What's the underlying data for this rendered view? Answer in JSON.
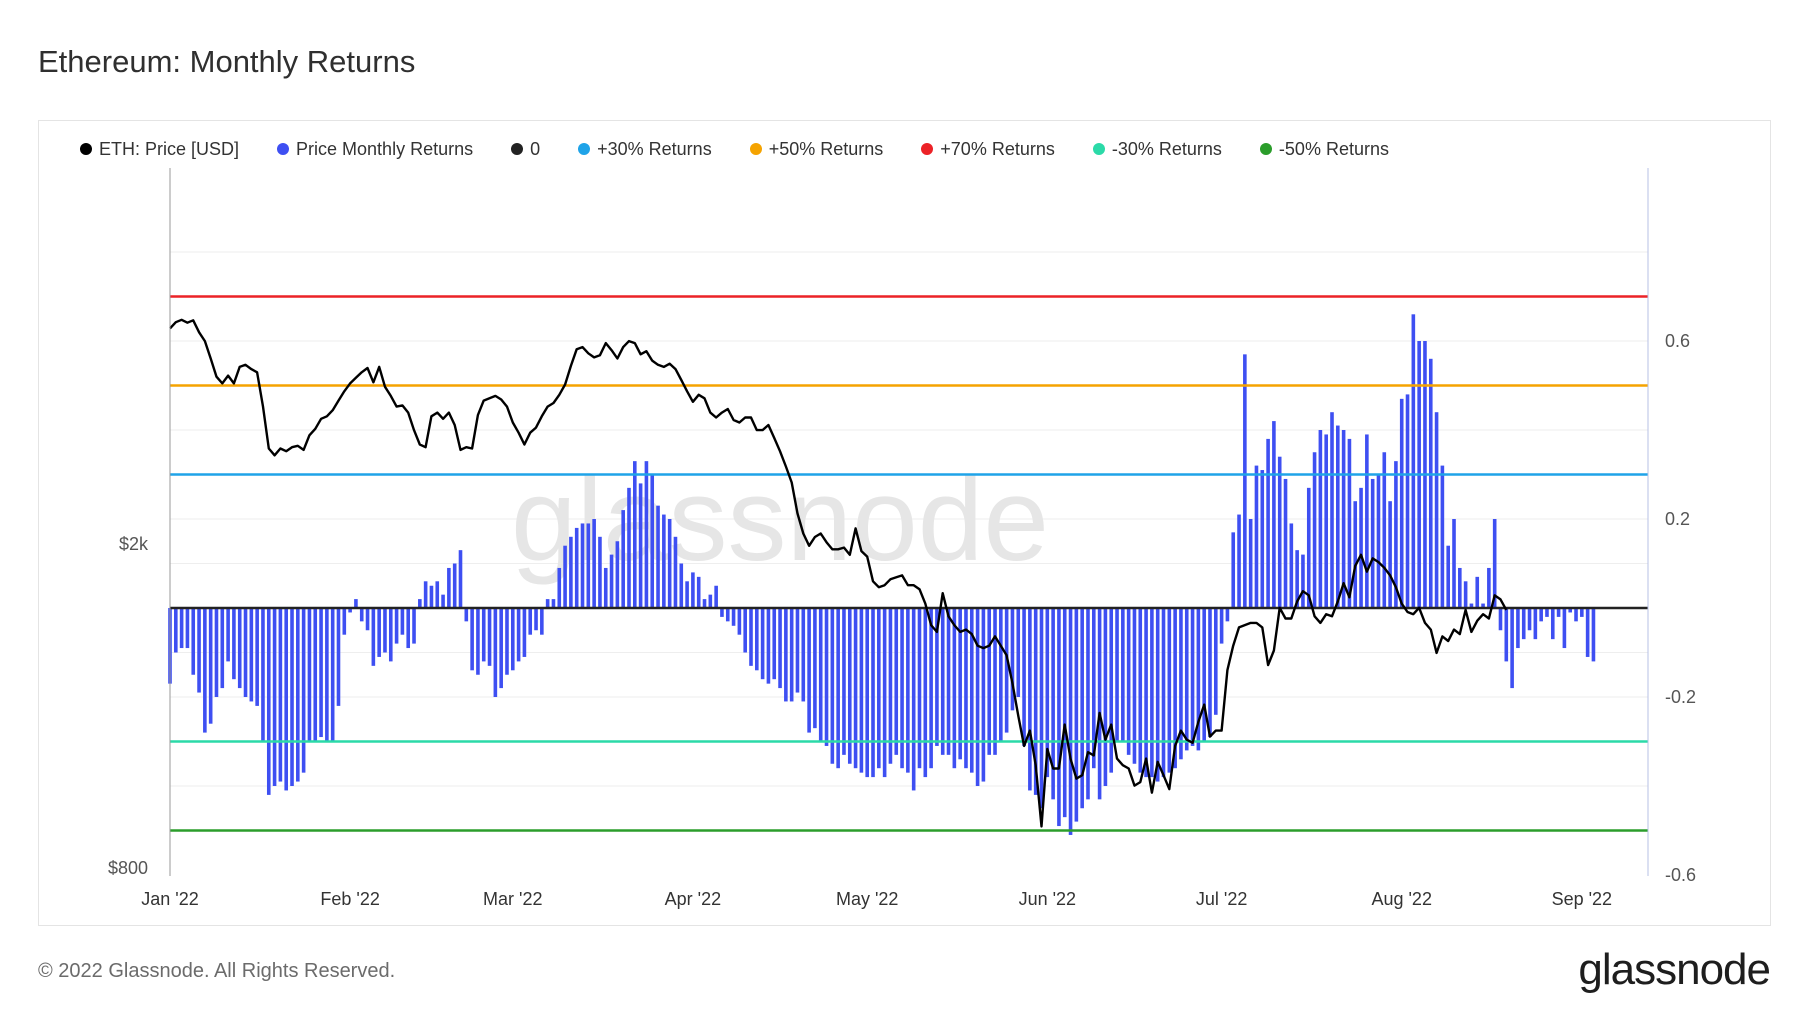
{
  "title": "Ethereum: Monthly Returns",
  "copyright": "© 2022 Glassnode. All Rights Reserved.",
  "logo": "glassnode",
  "watermark": "glassnode",
  "legend": [
    {
      "label": "ETH: Price [USD]",
      "color": "#000000"
    },
    {
      "label": "Price Monthly Returns",
      "color": "#3e4ff2"
    },
    {
      "label": "0",
      "color": "#222222"
    },
    {
      "label": "+30% Returns",
      "color": "#1fa3e8"
    },
    {
      "label": "+50% Returns",
      "color": "#f5a300"
    },
    {
      "label": "+70% Returns",
      "color": "#ec2227"
    },
    {
      "label": "-30% Returns",
      "color": "#2bdaa8"
    },
    {
      "label": "-50% Returns",
      "color": "#2b9d2b"
    }
  ],
  "chart_data": {
    "type": "bar",
    "x_ticks": [
      "Jan '22",
      "Feb '22",
      "Mar '22",
      "Apr '22",
      "May '22",
      "Jun '22",
      "Jul '22",
      "Aug '22",
      "Sep '22"
    ],
    "y_left_ticks": [
      "$2k",
      "$800"
    ],
    "y_right_ticks": [
      "0.6",
      "0.2",
      "-0.2",
      "-0.6"
    ],
    "y_right_range": [
      -0.6,
      0.8
    ],
    "y_left_scale": "log",
    "grid": true,
    "reference_lines": [
      {
        "name": "+70% Returns",
        "value": 0.7,
        "color": "#ec2227"
      },
      {
        "name": "+50% Returns",
        "value": 0.5,
        "color": "#f5a300"
      },
      {
        "name": "+30% Returns",
        "value": 0.3,
        "color": "#1fa3e8"
      },
      {
        "name": "0",
        "value": 0,
        "color": "#222222"
      },
      {
        "name": "-30% Returns",
        "value": -0.3,
        "color": "#2bdaa8"
      },
      {
        "name": "-50% Returns",
        "value": -0.5,
        "color": "#2b9d2b"
      }
    ],
    "series": [
      {
        "name": "Price Monthly Returns",
        "type": "bar",
        "color": "#3e4ff2",
        "start": "2022-01-01",
        "step_days": 1,
        "values": [
          -0.17,
          -0.1,
          -0.09,
          -0.09,
          -0.15,
          -0.19,
          -0.28,
          -0.26,
          -0.2,
          -0.18,
          -0.12,
          -0.16,
          -0.18,
          -0.2,
          -0.21,
          -0.22,
          -0.3,
          -0.42,
          -0.4,
          -0.39,
          -0.41,
          -0.4,
          -0.39,
          -0.37,
          -0.3,
          -0.3,
          -0.29,
          -0.3,
          -0.3,
          -0.22,
          -0.06,
          -0.01,
          0.02,
          -0.03,
          -0.05,
          -0.13,
          -0.11,
          -0.1,
          -0.12,
          -0.08,
          -0.06,
          -0.09,
          -0.08,
          0.02,
          0.06,
          0.05,
          0.06,
          0.03,
          0.09,
          0.1,
          0.13,
          -0.03,
          -0.14,
          -0.15,
          -0.12,
          -0.13,
          -0.2,
          -0.18,
          -0.15,
          -0.14,
          -0.12,
          -0.11,
          -0.06,
          -0.05,
          -0.06,
          0.02,
          0.02,
          0.09,
          0.14,
          0.16,
          0.18,
          0.19,
          0.19,
          0.2,
          0.16,
          0.09,
          0.12,
          0.15,
          0.22,
          0.27,
          0.33,
          0.28,
          0.33,
          0.3,
          0.23,
          0.21,
          0.2,
          0.16,
          0.1,
          0.06,
          0.08,
          0.07,
          0.02,
          0.03,
          0.05,
          -0.02,
          -0.03,
          -0.04,
          -0.06,
          -0.1,
          -0.13,
          -0.14,
          -0.16,
          -0.17,
          -0.16,
          -0.18,
          -0.21,
          -0.21,
          -0.19,
          -0.21,
          -0.28,
          -0.27,
          -0.3,
          -0.31,
          -0.35,
          -0.36,
          -0.33,
          -0.35,
          -0.36,
          -0.37,
          -0.38,
          -0.38,
          -0.36,
          -0.38,
          -0.35,
          -0.33,
          -0.36,
          -0.37,
          -0.41,
          -0.36,
          -0.38,
          -0.36,
          -0.31,
          -0.33,
          -0.33,
          -0.36,
          -0.34,
          -0.36,
          -0.37,
          -0.4,
          -0.39,
          -0.33,
          -0.33,
          -0.3,
          -0.28,
          -0.23,
          -0.2,
          -0.31,
          -0.41,
          -0.42,
          -0.45,
          -0.38,
          -0.43,
          -0.49,
          -0.47,
          -0.51,
          -0.48,
          -0.45,
          -0.43,
          -0.36,
          -0.43,
          -0.4,
          -0.37,
          -0.3,
          -0.3,
          -0.33,
          -0.35,
          -0.37,
          -0.38,
          -0.38,
          -0.39,
          -0.38,
          -0.37,
          -0.36,
          -0.34,
          -0.32,
          -0.31,
          -0.32,
          -0.3,
          -0.29,
          -0.24,
          -0.08,
          -0.03,
          0.17,
          0.21,
          0.57,
          0.2,
          0.32,
          0.31,
          0.38,
          0.42,
          0.34,
          0.29,
          0.19,
          0.13,
          0.12,
          0.27,
          0.35,
          0.4,
          0.39,
          0.44,
          0.41,
          0.4,
          0.38,
          0.24,
          0.27,
          0.39,
          0.29,
          0.3,
          0.35,
          0.24,
          0.33,
          0.47,
          0.48,
          0.66,
          0.6,
          0.6,
          0.56,
          0.44,
          0.32,
          0.14,
          0.2,
          0.09,
          0.06,
          0.01,
          0.07,
          0.01,
          0.09,
          0.2,
          -0.05,
          -0.12,
          -0.18,
          -0.09,
          -0.07,
          -0.05,
          -0.07,
          -0.03,
          -0.02,
          -0.07,
          -0.02,
          -0.09,
          -0.01,
          -0.03,
          -0.02,
          -0.11,
          -0.12
        ]
      },
      {
        "name": "ETH: Price [USD]",
        "type": "line",
        "color": "#000000",
        "start": "2022-01-01",
        "step_days": 1,
        "values": [
          3680,
          3745,
          3770,
          3740,
          3765,
          3640,
          3550,
          3380,
          3210,
          3150,
          3220,
          3150,
          3300,
          3320,
          3280,
          3250,
          2950,
          2620,
          2570,
          2620,
          2600,
          2630,
          2640,
          2610,
          2720,
          2770,
          2850,
          2870,
          2920,
          3000,
          3080,
          3150,
          3200,
          3250,
          3290,
          3160,
          3300,
          3120,
          3040,
          2950,
          2960,
          2900,
          2760,
          2650,
          2630,
          2870,
          2900,
          2850,
          2900,
          2800,
          2610,
          2630,
          2620,
          2880,
          3000,
          3020,
          3040,
          3010,
          2950,
          2820,
          2740,
          2650,
          2740,
          2780,
          2870,
          2950,
          2980,
          3050,
          3140,
          3310,
          3470,
          3490,
          3430,
          3390,
          3410,
          3530,
          3460,
          3380,
          3490,
          3550,
          3530,
          3420,
          3450,
          3360,
          3320,
          3300,
          3330,
          3280,
          3180,
          3080,
          2990,
          3050,
          3020,
          2900,
          2860,
          2900,
          2930,
          2840,
          2820,
          2860,
          2860,
          2760,
          2760,
          2800,
          2700,
          2600,
          2490,
          2380,
          2180,
          2060,
          1990,
          2040,
          2060,
          2010,
          1970,
          1970,
          1980,
          1940,
          2090,
          1960,
          1930,
          1800,
          1770,
          1780,
          1810,
          1820,
          1830,
          1780,
          1780,
          1760,
          1690,
          1590,
          1560,
          1740,
          1630,
          1590,
          1560,
          1570,
          1550,
          1500,
          1490,
          1500,
          1540,
          1500,
          1460,
          1350,
          1230,
          1130,
          1180,
          1070,
          900,
          1120,
          1060,
          1060,
          1200,
          1090,
          1030,
          1040,
          1110,
          1100,
          1240,
          1150,
          1200,
          1090,
          1070,
          1060,
          1010,
          1020,
          1090,
          990,
          1080,
          1040,
          1000,
          1130,
          1180,
          1150,
          1140,
          1210,
          1270,
          1160,
          1180,
          1180,
          1400,
          1500,
          1580,
          1590,
          1600,
          1600,
          1580,
          1420,
          1480,
          1670,
          1620,
          1620,
          1700,
          1750,
          1730,
          1630,
          1600,
          1640,
          1630,
          1700,
          1790,
          1720,
          1880,
          1940,
          1850,
          1920,
          1900,
          1870,
          1830,
          1770,
          1690,
          1650,
          1640,
          1670,
          1600,
          1570,
          1470,
          1540,
          1520,
          1570,
          1550,
          1660,
          1560,
          1610,
          1640,
          1620,
          1730,
          1710,
          1660
        ]
      }
    ]
  }
}
